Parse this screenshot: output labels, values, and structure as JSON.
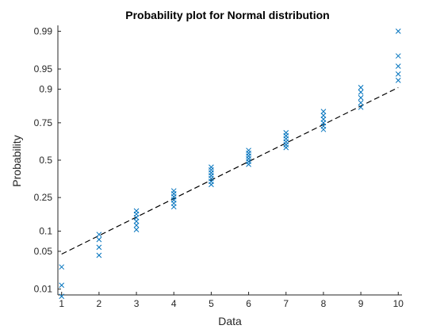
{
  "chart_data": {
    "type": "scatter",
    "title": "Probability plot for Normal distribution",
    "xlabel": "Data",
    "ylabel": "Probability",
    "xlim": [
      0.9,
      10.1
    ],
    "ylim": [
      0.0075,
      0.9925
    ],
    "y_scale": "normal-probability",
    "x_ticks": [
      "1",
      "2",
      "3",
      "4",
      "5",
      "6",
      "7",
      "8",
      "9",
      "10"
    ],
    "y_ticks": [
      "0.01",
      "0.05",
      "0.1",
      "0.25",
      "0.5",
      "0.75",
      "0.9",
      "0.95",
      "0.99"
    ],
    "grid": false,
    "marker": "x",
    "marker_color": "#0072BD",
    "reference_line": {
      "style": "dashed",
      "color": "#000000",
      "from": [
        1,
        0.045
      ],
      "to": [
        10,
        0.905
      ]
    },
    "points": [
      [
        1,
        0.007
      ],
      [
        1,
        0.012
      ],
      [
        1,
        0.027
      ],
      [
        2,
        0.043
      ],
      [
        2,
        0.058
      ],
      [
        2,
        0.076
      ],
      [
        2,
        0.09
      ],
      [
        3,
        0.105
      ],
      [
        3,
        0.12
      ],
      [
        3,
        0.135
      ],
      [
        3,
        0.15
      ],
      [
        3,
        0.165
      ],
      [
        3,
        0.18
      ],
      [
        4,
        0.2
      ],
      [
        4,
        0.218
      ],
      [
        4,
        0.236
      ],
      [
        4,
        0.254
      ],
      [
        4,
        0.272
      ],
      [
        4,
        0.29
      ],
      [
        5,
        0.33
      ],
      [
        5,
        0.35
      ],
      [
        5,
        0.37
      ],
      [
        5,
        0.39
      ],
      [
        5,
        0.41
      ],
      [
        5,
        0.43
      ],
      [
        5,
        0.45
      ],
      [
        6,
        0.47
      ],
      [
        6,
        0.49
      ],
      [
        6,
        0.51
      ],
      [
        6,
        0.53
      ],
      [
        6,
        0.55
      ],
      [
        6,
        0.57
      ],
      [
        7,
        0.59
      ],
      [
        7,
        0.61
      ],
      [
        7,
        0.63
      ],
      [
        7,
        0.65
      ],
      [
        7,
        0.67
      ],
      [
        7,
        0.69
      ],
      [
        8,
        0.71
      ],
      [
        8,
        0.73
      ],
      [
        8,
        0.75
      ],
      [
        8,
        0.77
      ],
      [
        8,
        0.79
      ],
      [
        8,
        0.81
      ],
      [
        9,
        0.83
      ],
      [
        9,
        0.85
      ],
      [
        9,
        0.87
      ],
      [
        9,
        0.89
      ],
      [
        9,
        0.905
      ],
      [
        10,
        0.925
      ],
      [
        10,
        0.94
      ],
      [
        10,
        0.955
      ],
      [
        10,
        0.97
      ],
      [
        10,
        0.99
      ]
    ]
  }
}
